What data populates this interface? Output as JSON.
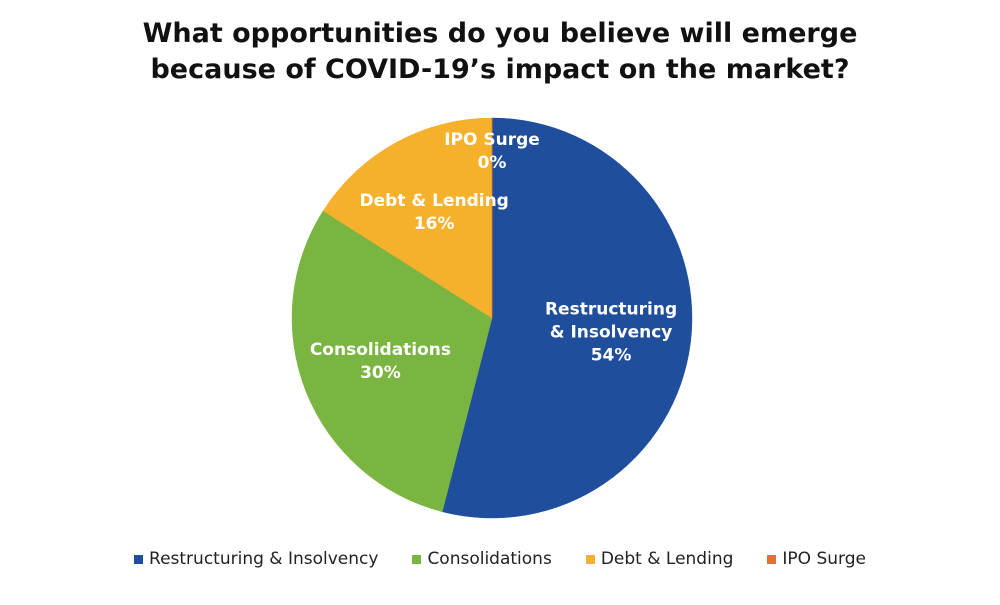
{
  "chart_data": {
    "type": "pie",
    "title": "What opportunities do you believe will emerge because of COVID-19’s impact on the market?",
    "categories": [
      "Restructuring & Insolvency",
      "Consolidations",
      "Debt & Lending",
      "IPO Surge"
    ],
    "values": [
      54,
      30,
      16,
      0
    ],
    "value_labels": [
      "54%",
      "30%",
      "16%",
      "0%"
    ],
    "colors": [
      "#1f4e9c",
      "#79b540",
      "#f6b12c",
      "#e8702a"
    ],
    "legend": "bottom"
  }
}
